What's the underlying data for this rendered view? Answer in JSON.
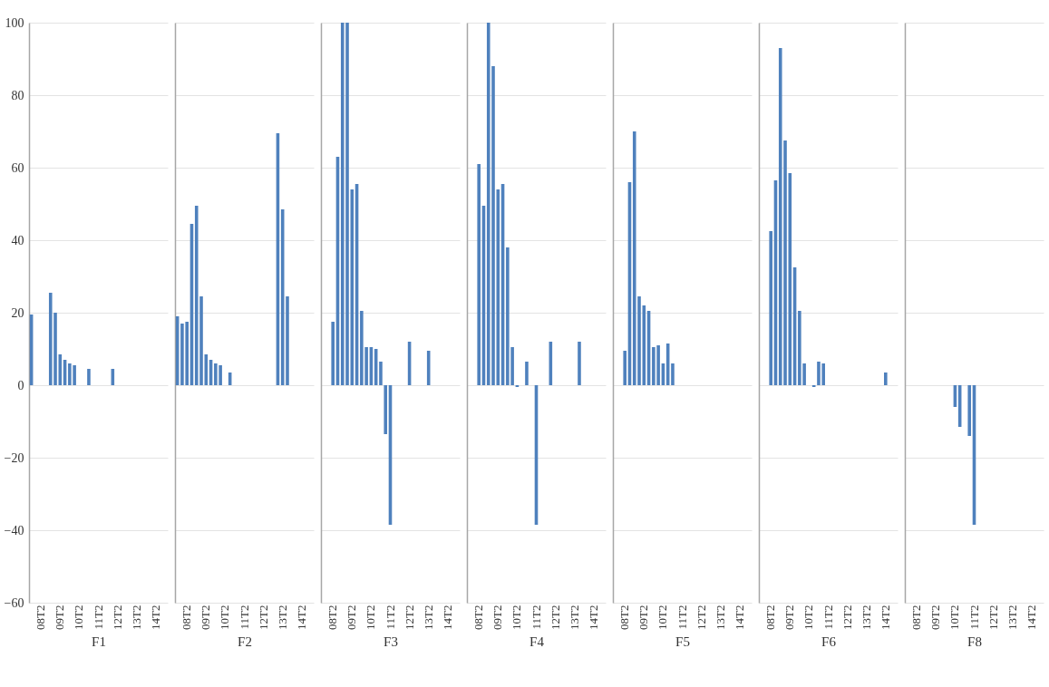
{
  "chart_data": [
    {
      "type": "bar",
      "xlabel": "F1",
      "categories": [
        null,
        null,
        "08T2",
        null,
        null,
        null,
        "09T2",
        null,
        null,
        null,
        "10T2",
        null,
        null,
        null,
        "11T2",
        null,
        null,
        null,
        "12T2",
        null,
        null,
        null,
        "13T2",
        null,
        null,
        null,
        "14T2",
        null,
        null
      ],
      "values": [
        19.5,
        null,
        null,
        null,
        25.5,
        20,
        8.5,
        7,
        6,
        5.5,
        null,
        null,
        4.5,
        null,
        null,
        null,
        null,
        4.5,
        null,
        null,
        null,
        null,
        null,
        null,
        null,
        null,
        null,
        null,
        null
      ],
      "color": "#4f81bd",
      "ylim": [
        -60,
        100
      ],
      "yticks": [
        -60,
        -40,
        -20,
        0,
        20,
        40,
        60,
        80,
        100
      ],
      "grid": "y"
    },
    {
      "type": "bar",
      "xlabel": "F2",
      "categories": [
        null,
        null,
        "08T2",
        null,
        null,
        null,
        "09T2",
        null,
        null,
        null,
        "10T2",
        null,
        null,
        null,
        "11T2",
        null,
        null,
        null,
        "12T2",
        null,
        null,
        null,
        "13T2",
        null,
        null,
        null,
        "14T2",
        null,
        null
      ],
      "values": [
        19,
        17,
        17.5,
        44.5,
        49.5,
        24.5,
        8.5,
        7,
        6,
        5.5,
        null,
        3.5,
        null,
        null,
        null,
        null,
        null,
        null,
        null,
        null,
        null,
        69.5,
        48.5,
        24.5,
        null,
        null,
        null,
        null,
        null
      ],
      "color": "#4f81bd",
      "ylim": [
        -60,
        100
      ],
      "yticks": [
        -60,
        -40,
        -20,
        0,
        20,
        40,
        60,
        80,
        100
      ],
      "grid": "y",
      "tick_labels": "x"
    },
    {
      "type": "bar",
      "xlabel": "F3",
      "categories": [
        null,
        null,
        "08T2",
        null,
        null,
        null,
        "09T2",
        null,
        null,
        null,
        "10T2",
        null,
        null,
        null,
        "11T2",
        null,
        null,
        null,
        "12T2",
        null,
        null,
        null,
        "13T2",
        null,
        null,
        null,
        "14T2",
        null,
        null
      ],
      "values": [
        null,
        null,
        17.5,
        63,
        100,
        100,
        54,
        55.5,
        20.5,
        10.5,
        10.5,
        10,
        6.5,
        -13.5,
        -38.5,
        null,
        null,
        null,
        12,
        null,
        null,
        null,
        9.5,
        null,
        null,
        null,
        null,
        null,
        null
      ],
      "color": "#4f81bd",
      "ylim": [
        -60,
        100
      ],
      "yticks": [
        -60,
        -40,
        -20,
        0,
        20,
        40,
        60,
        80,
        100
      ],
      "grid": "y",
      "tick_labels": "x"
    },
    {
      "type": "bar",
      "xlabel": "F4",
      "categories": [
        null,
        null,
        "08T2",
        null,
        null,
        null,
        "09T2",
        null,
        null,
        null,
        "10T2",
        null,
        null,
        null,
        "11T2",
        null,
        null,
        null,
        "12T2",
        null,
        null,
        null,
        "13T2",
        null,
        null,
        null,
        "14T2",
        null,
        null
      ],
      "values": [
        null,
        null,
        61,
        49.5,
        100,
        88,
        54,
        55.5,
        38,
        10.5,
        -0.5,
        null,
        6.5,
        null,
        -38.5,
        null,
        null,
        12,
        null,
        null,
        null,
        null,
        null,
        12,
        null,
        null,
        null,
        null,
        null
      ],
      "color": "#4f81bd",
      "ylim": [
        -60,
        100
      ],
      "yticks": [
        -60,
        -40,
        -20,
        0,
        20,
        40,
        60,
        80,
        100
      ],
      "grid": "y",
      "tick_labels": "x"
    },
    {
      "type": "bar",
      "xlabel": "F5",
      "categories": [
        null,
        null,
        "08T2",
        null,
        null,
        null,
        "09T2",
        null,
        null,
        null,
        "10T2",
        null,
        null,
        null,
        "11T2",
        null,
        null,
        null,
        "12T2",
        null,
        null,
        null,
        "13T2",
        null,
        null,
        null,
        "14T2",
        null,
        null
      ],
      "values": [
        null,
        null,
        9.5,
        56,
        70,
        24.5,
        22,
        20.5,
        10.5,
        11,
        6,
        11.5,
        6,
        null,
        null,
        null,
        null,
        null,
        null,
        null,
        null,
        null,
        null,
        null,
        null,
        null,
        null,
        null,
        null
      ],
      "color": "#4f81bd",
      "ylim": [
        -60,
        100
      ],
      "yticks": [
        -60,
        -40,
        -20,
        0,
        20,
        40,
        60,
        80,
        100
      ],
      "grid": "y",
      "tick_labels": "x"
    },
    {
      "type": "bar",
      "xlabel": "F6",
      "categories": [
        null,
        null,
        "08T2",
        null,
        null,
        null,
        "09T2",
        null,
        null,
        null,
        "10T2",
        null,
        null,
        null,
        "11T2",
        null,
        null,
        null,
        "12T2",
        null,
        null,
        null,
        "13T2",
        null,
        null,
        null,
        "14T2",
        null,
        null
      ],
      "values": [
        null,
        null,
        42.5,
        56.5,
        93,
        67.5,
        58.5,
        32.5,
        20.5,
        6,
        null,
        -0.5,
        6.5,
        6,
        null,
        null,
        null,
        null,
        null,
        null,
        null,
        null,
        null,
        null,
        null,
        null,
        3.5,
        null,
        null
      ],
      "color": "#4f81bd",
      "ylim": [
        -60,
        100
      ],
      "yticks": [
        -60,
        -40,
        -20,
        0,
        20,
        40,
        60,
        80,
        100
      ],
      "grid": "y",
      "tick_labels": "x"
    },
    {
      "type": "bar",
      "xlabel": "F8",
      "categories": [
        null,
        null,
        "08T2",
        null,
        null,
        null,
        "09T2",
        null,
        null,
        null,
        "10T2",
        null,
        null,
        null,
        "11T2",
        null,
        null,
        null,
        "12T2",
        null,
        null,
        null,
        "13T2",
        null,
        null,
        null,
        "14T2",
        null,
        null
      ],
      "values": [
        null,
        null,
        null,
        null,
        null,
        null,
        null,
        null,
        null,
        null,
        -6,
        -11.5,
        null,
        -14,
        -38.5,
        null,
        null,
        null,
        null,
        null,
        null,
        null,
        null,
        null,
        null,
        null,
        null,
        null,
        null
      ],
      "color": "#4f81bd",
      "ylim": [
        -60,
        100
      ],
      "yticks": [
        -60,
        -40,
        -20,
        0,
        20,
        40,
        60,
        80,
        100
      ],
      "grid": "y",
      "tick_labels": "x"
    }
  ]
}
